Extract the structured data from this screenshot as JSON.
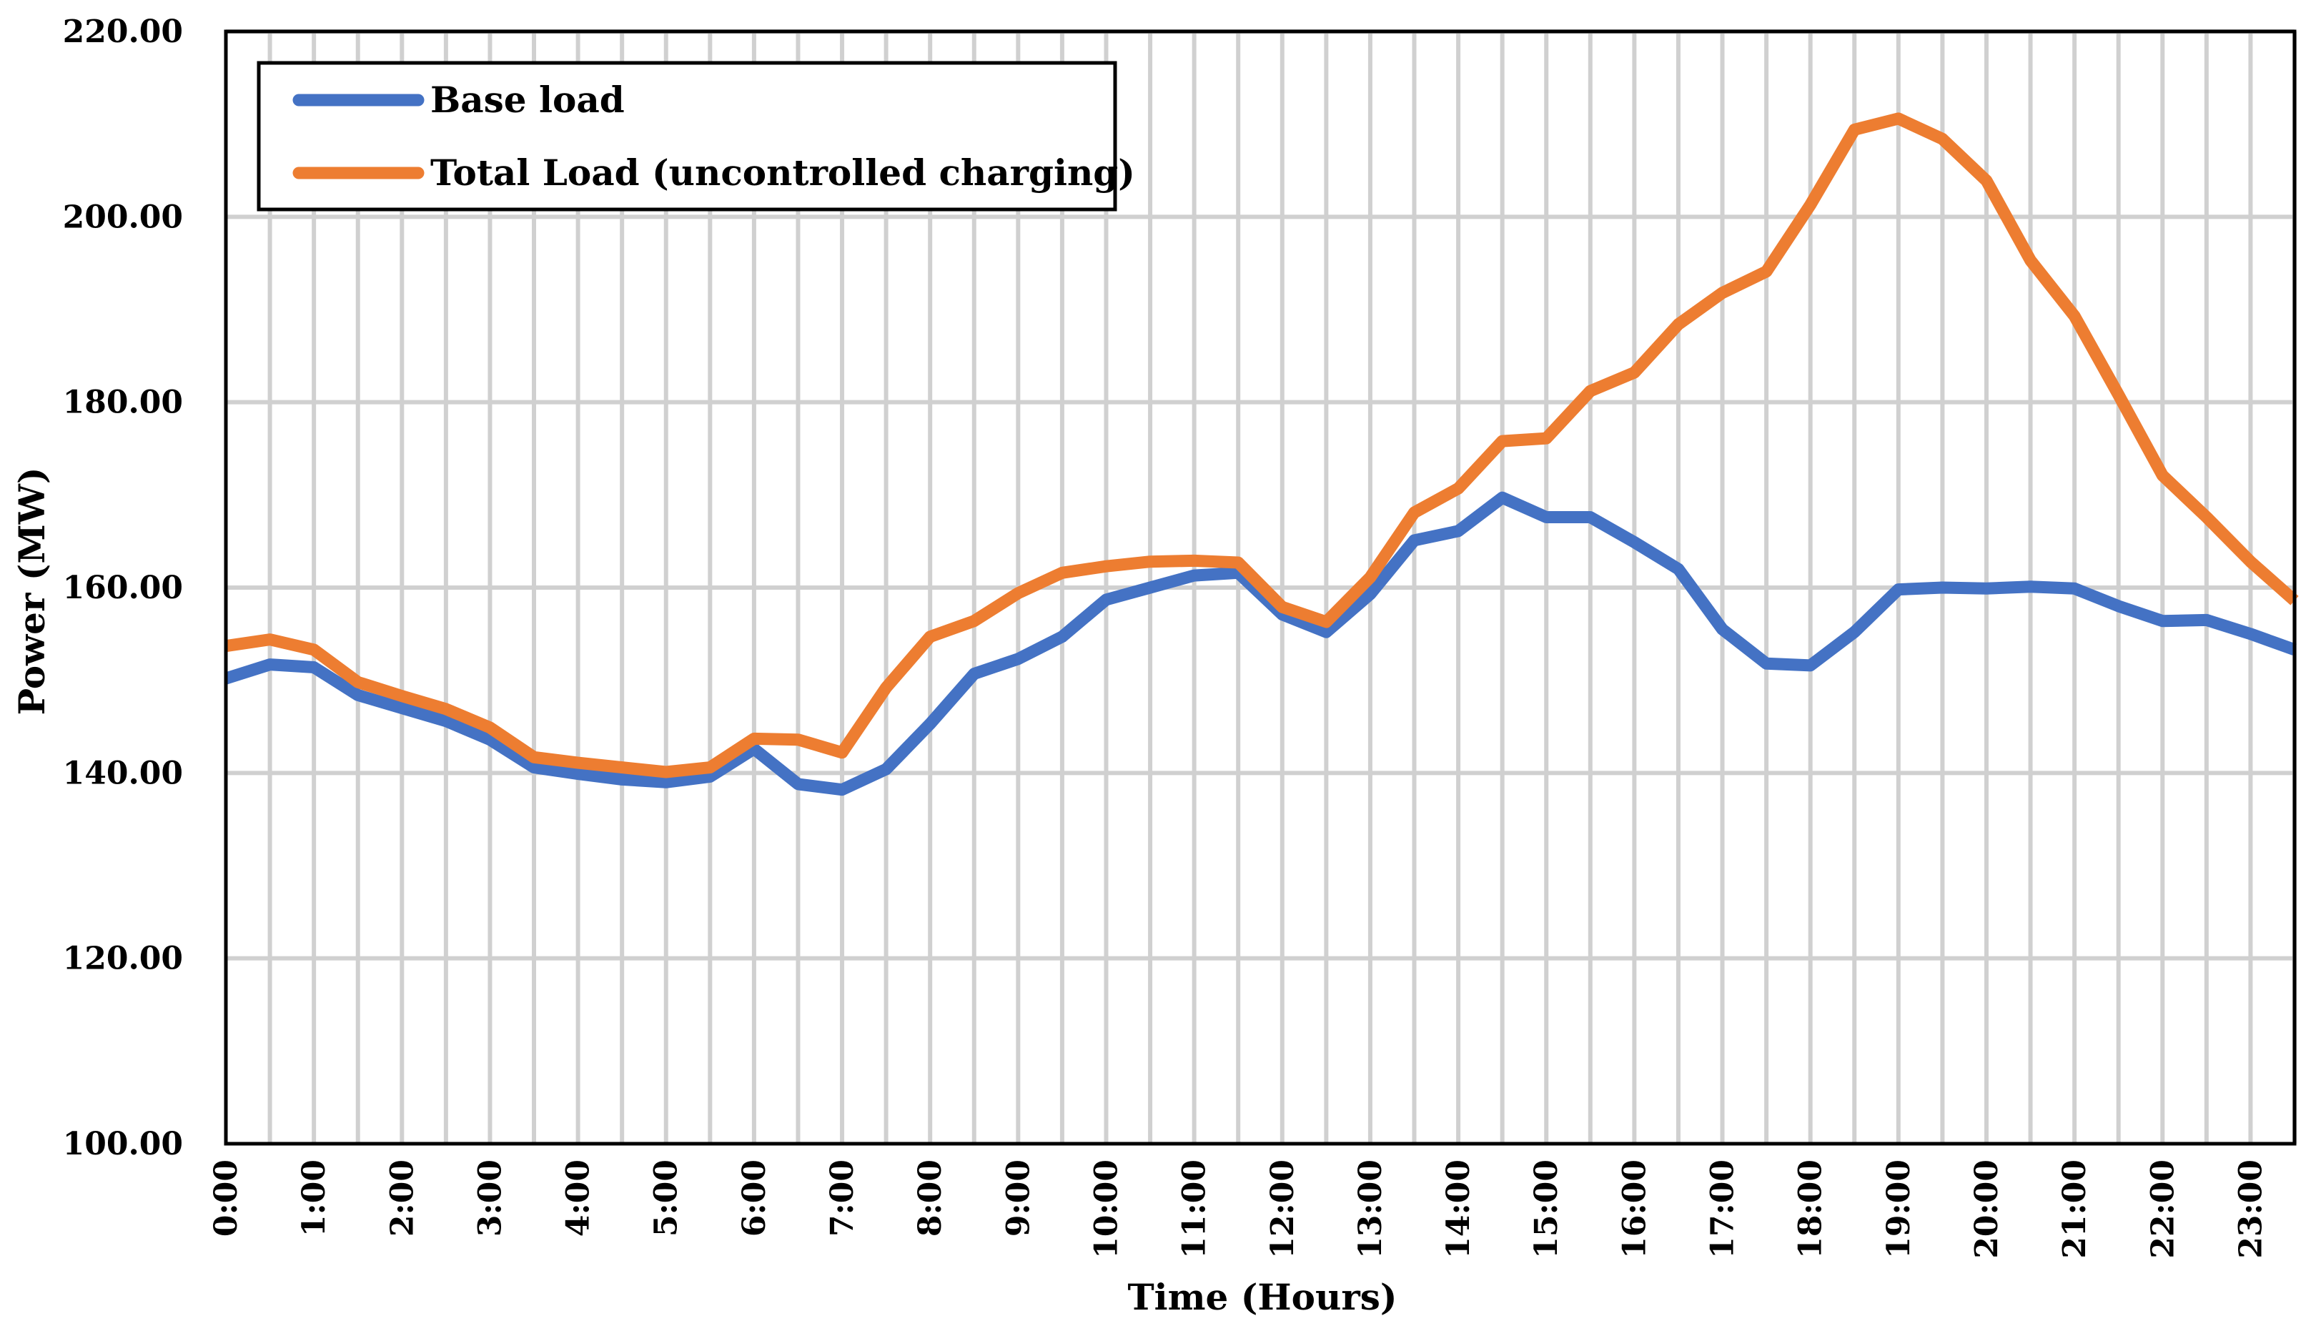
{
  "chart_data": {
    "type": "line",
    "title": "",
    "xlabel": "Time (Hours)",
    "ylabel": "Power (MW)",
    "ylim": [
      100,
      220
    ],
    "y_ticks": [
      "100.00",
      "120.00",
      "140.00",
      "160.00",
      "180.00",
      "200.00",
      "220.00"
    ],
    "x_tick_labels": [
      "0:00",
      "1:00",
      "2:00",
      "3:00",
      "4:00",
      "5:00",
      "6:00",
      "7:00",
      "8:00",
      "9:00",
      "10:00",
      "11:00",
      "12:00",
      "13:00",
      "14:00",
      "15:00",
      "16:00",
      "17:00",
      "18:00",
      "19:00",
      "20:00",
      "21:00",
      "22:00",
      "23:00"
    ],
    "x": [
      0,
      0.5,
      1,
      1.5,
      2,
      2.5,
      3,
      3.5,
      4,
      4.5,
      5,
      5.5,
      6,
      6.5,
      7,
      7.5,
      8,
      8.5,
      9,
      9.5,
      10,
      10.5,
      11,
      11.5,
      12,
      12.5,
      13,
      13.5,
      14,
      14.5,
      15,
      15.5,
      16,
      16.5,
      17,
      17.5,
      18,
      18.5,
      19,
      19.5,
      20,
      20.5,
      21,
      21.5,
      22,
      22.5,
      23,
      23.5
    ],
    "grid": "vertical",
    "legend_position": "top-left",
    "series": [
      {
        "name": "Base load",
        "color": "#4472C4",
        "values": [
          150.2,
          151.7,
          151.4,
          148.4,
          147.0,
          145.6,
          143.6,
          140.6,
          139.9,
          139.3,
          139.0,
          139.6,
          142.6,
          138.8,
          138.2,
          140.4,
          145.3,
          150.7,
          152.3,
          154.7,
          158.7,
          160.0,
          161.3,
          161.6,
          157.1,
          155.2,
          159.3,
          165.1,
          166.1,
          169.7,
          167.6,
          167.6,
          164.9,
          162.0,
          155.5,
          151.8,
          151.6,
          155.2,
          159.8,
          160.0,
          159.9,
          160.1,
          159.9,
          158.0,
          156.4,
          156.5,
          155.0,
          153.3
        ]
      },
      {
        "name": "Total Load (uncontrolled charging)",
        "color": "#ED7D31",
        "values": [
          153.7,
          154.4,
          153.3,
          149.8,
          148.3,
          146.9,
          144.9,
          141.7,
          141.1,
          140.6,
          140.1,
          140.6,
          143.7,
          143.6,
          142.2,
          149.2,
          154.7,
          156.4,
          159.4,
          161.6,
          162.3,
          162.8,
          162.9,
          162.7,
          157.9,
          156.3,
          161.1,
          168.1,
          170.7,
          175.8,
          176.1,
          181.2,
          183.2,
          188.4,
          191.8,
          194.1,
          201.3,
          209.4,
          210.6,
          208.4,
          203.9,
          195.3,
          189.3,
          180.8,
          172.1,
          167.6,
          162.8,
          158.6
        ]
      }
    ]
  }
}
